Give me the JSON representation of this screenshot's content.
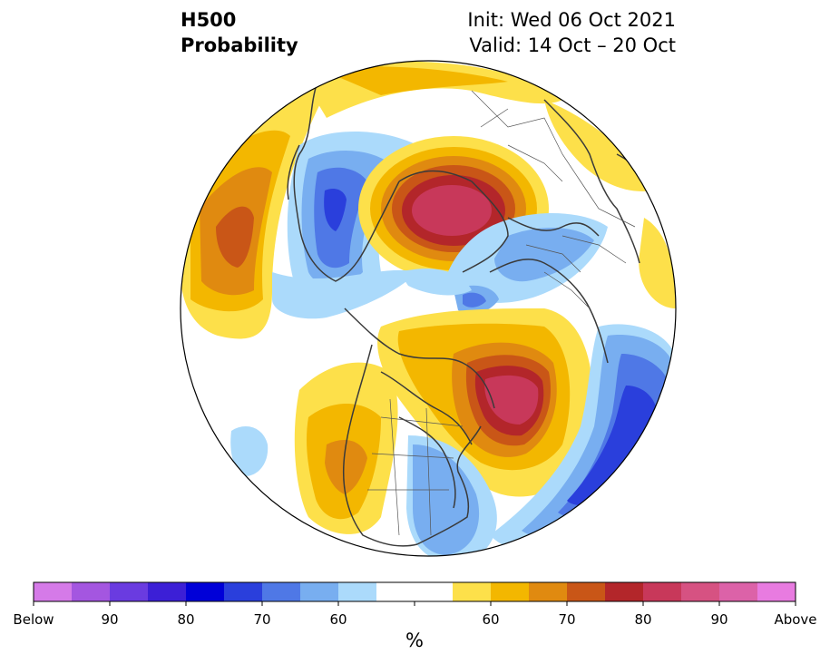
{
  "title": {
    "line1": "H500",
    "line2": "Probability"
  },
  "init": {
    "line1": "Init: Wed 06 Oct 2021",
    "line2": "Valid: 14 Oct – 20 Oct"
  },
  "colorbar": {
    "unit": "%",
    "tick_labels": [
      "Below",
      "90",
      "80",
      "70",
      "60",
      "60",
      "70",
      "80",
      "90",
      "Above"
    ],
    "colors": [
      "#d57ae8",
      "#a456e0",
      "#6a3be0",
      "#3c1fd6",
      "#0000d8",
      "#2a3fdc",
      "#4f78e6",
      "#78aef0",
      "#abdafb",
      "#ffffff",
      "#ffffff",
      "#fde04a",
      "#f3b700",
      "#e08a10",
      "#c95617",
      "#b3262a",
      "#c8385a",
      "#d65282",
      "#dc62a8",
      "#e87be0"
    ]
  },
  "colors": {
    "white": "#ffffff",
    "outline": "#000000",
    "coast": "#3a3a3a"
  }
}
